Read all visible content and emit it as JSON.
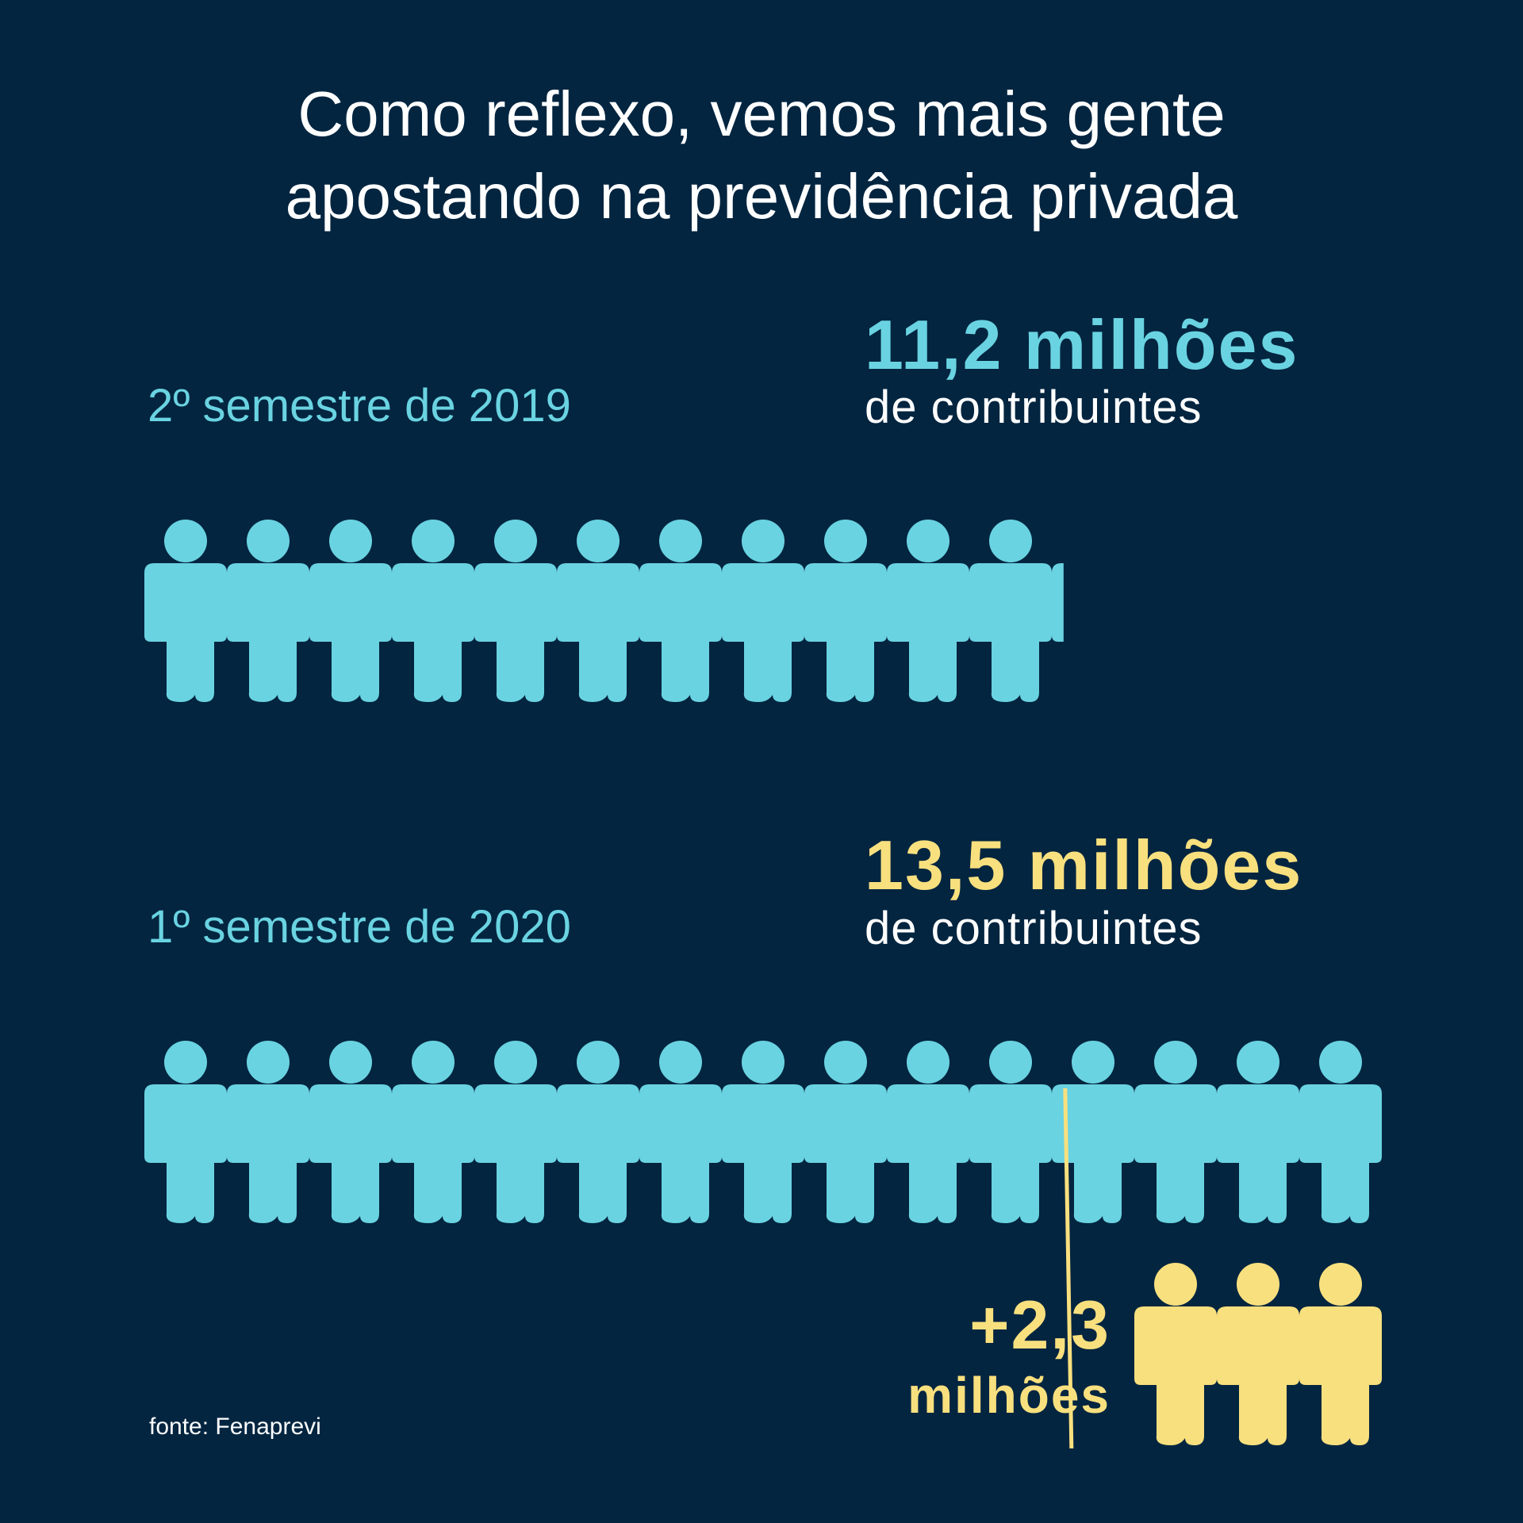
{
  "title": {
    "line1": "Como reflexo, vemos mais gente",
    "line2": "apostando na previdência privada"
  },
  "chart_data": {
    "type": "pictogram",
    "unit": "milhões de contribuintes",
    "series": [
      {
        "period": "2º semestre de 2019",
        "value": 11.2,
        "value_label": "11,2 milhões",
        "sub_label": "de contribuintes",
        "color": "#6ad3e1"
      },
      {
        "period": "1º  semestre de 2020",
        "value": 13.5,
        "value_label": "13,5 milhões",
        "sub_label": "de contribuintes",
        "color": "#f9e07e"
      }
    ],
    "increase": {
      "value": 2.3,
      "line1": "+2,3",
      "line2": "milhões",
      "color": "#f9e07e"
    }
  },
  "colors": {
    "background": "#032540",
    "figure": "#6ad3e1",
    "highlight": "#f9e07e",
    "text": "#ffffff"
  },
  "source": "fonte: Fenaprevi"
}
